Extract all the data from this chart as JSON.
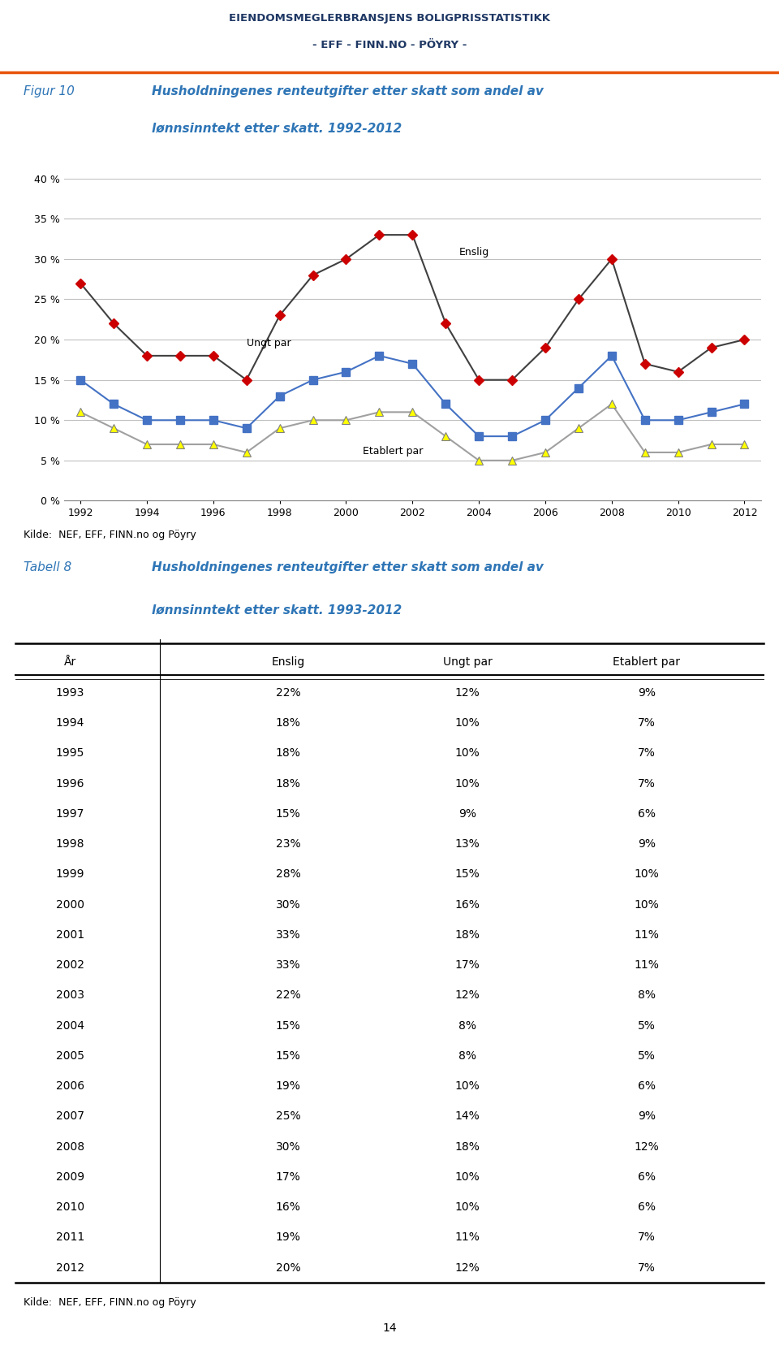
{
  "header_line1": "EIENDOMSMEGLERBRANSJENS BOLIGPRISSTATISTIKK",
  "header_line2": "- EFF - FINN.NO - PÖYRY -",
  "fig_label": "Figur 10",
  "fig_title_line1": "Husholdningenes renteutgifter etter skatt som andel av",
  "fig_title_line2": "lønnsinntekt etter skatt. 1992-2012",
  "chart_source": "Kilde:  NEF, EFF, FINN.no og Pöyry",
  "years_chart": [
    1992,
    1993,
    1994,
    1995,
    1996,
    1997,
    1998,
    1999,
    2000,
    2001,
    2002,
    2003,
    2004,
    2005,
    2006,
    2007,
    2008,
    2009,
    2010,
    2011,
    2012
  ],
  "enslig": [
    27,
    22,
    18,
    18,
    18,
    15,
    23,
    28,
    30,
    33,
    33,
    22,
    15,
    15,
    19,
    25,
    30,
    17,
    16,
    19,
    20
  ],
  "ungt_par": [
    15,
    12,
    10,
    10,
    10,
    9,
    13,
    15,
    16,
    18,
    17,
    12,
    8,
    8,
    10,
    14,
    18,
    10,
    10,
    11,
    12
  ],
  "etablert_par": [
    11,
    9,
    7,
    7,
    7,
    6,
    9,
    10,
    10,
    11,
    11,
    8,
    5,
    5,
    6,
    9,
    12,
    6,
    6,
    7,
    7
  ],
  "ylim": [
    0,
    40
  ],
  "yticks": [
    0,
    5,
    10,
    15,
    20,
    25,
    30,
    35,
    40
  ],
  "ytick_labels": [
    "0 %",
    "5 %",
    "10 %",
    "15 %",
    "20 %",
    "25 %",
    "30 %",
    "35 %",
    "40 %"
  ],
  "xticks": [
    1992,
    1994,
    1996,
    1998,
    2000,
    2002,
    2004,
    2006,
    2008,
    2010,
    2012
  ],
  "table_label": "Tabell 8",
  "table_title_line1": "Husholdningenes renteutgifter etter skatt som andel av",
  "table_title_line2": "lønnsinntekt etter skatt. 1993-2012",
  "table_source": "Kilde:  NEF, EFF, FINN.no og Pöyry",
  "table_col_headers": [
    "År",
    "Enslig",
    "Ungt par",
    "Etablert par"
  ],
  "table_years": [
    1993,
    1994,
    1995,
    1996,
    1997,
    1998,
    1999,
    2000,
    2001,
    2002,
    2003,
    2004,
    2005,
    2006,
    2007,
    2008,
    2009,
    2010,
    2011,
    2012
  ],
  "table_enslig": [
    "22%",
    "18%",
    "18%",
    "18%",
    "15%",
    "23%",
    "28%",
    "30%",
    "33%",
    "33%",
    "22%",
    "15%",
    "15%",
    "19%",
    "25%",
    "30%",
    "17%",
    "16%",
    "19%",
    "20%"
  ],
  "table_ungt_par": [
    "12%",
    "10%",
    "10%",
    "10%",
    "9%",
    "13%",
    "15%",
    "16%",
    "18%",
    "17%",
    "12%",
    "8%",
    "8%",
    "10%",
    "14%",
    "18%",
    "10%",
    "10%",
    "11%",
    "12%"
  ],
  "table_etablert_par": [
    "9%",
    "7%",
    "7%",
    "7%",
    "6%",
    "9%",
    "10%",
    "10%",
    "11%",
    "11%",
    "8%",
    "5%",
    "5%",
    "6%",
    "9%",
    "12%",
    "6%",
    "6%",
    "7%",
    "7%"
  ],
  "header_color": "#1F3864",
  "orange_color": "#E8520A",
  "title_color": "#2E75B6",
  "enslig_line_color": "#404040",
  "enslig_marker_color": "#CC0000",
  "ungt_par_line_color": "#4472C4",
  "ungt_par_marker_color": "#4472C4",
  "etablert_par_line_color": "#A0A0A0",
  "etablert_par_marker_color": "#FFFF00",
  "etablert_par_marker_edge": "#808080",
  "grid_color": "#C0C0C0",
  "page_number": "14"
}
